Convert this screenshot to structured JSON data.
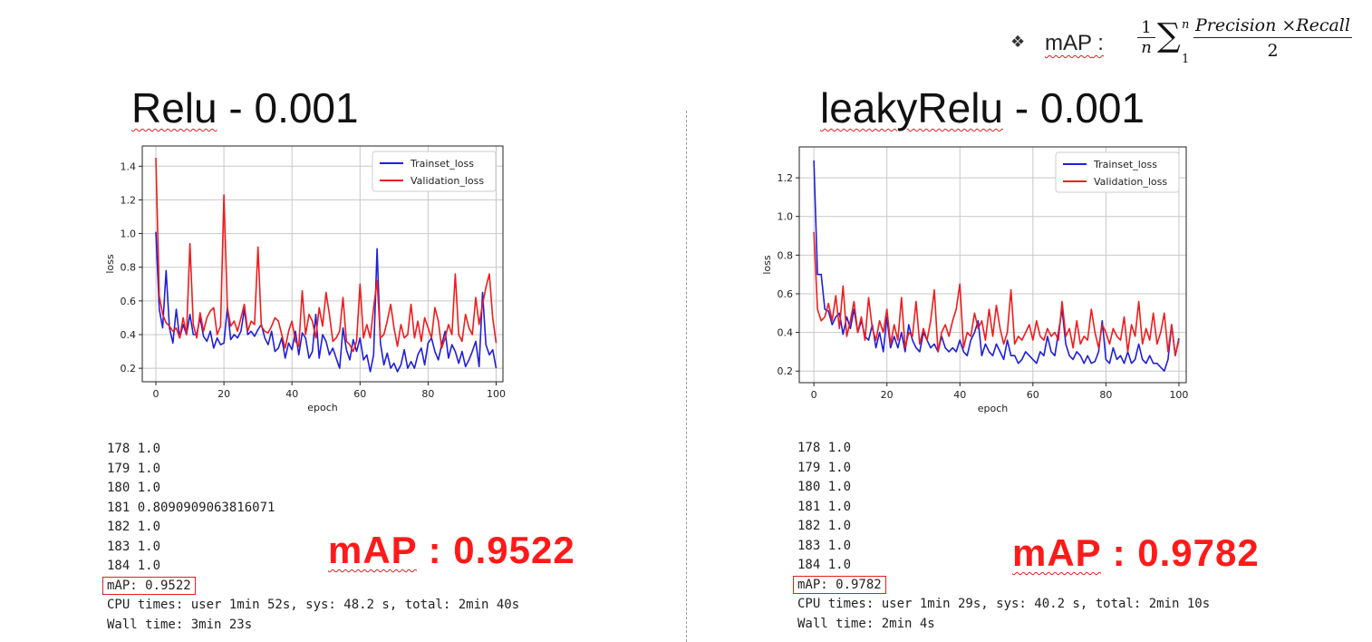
{
  "formula": {
    "bullet": "❖",
    "label": "mAP",
    "colon": ":",
    "frac1_num": "1",
    "frac1_den": "n",
    "sigma": "∑",
    "sup": "n",
    "sub": "1",
    "num": "Precision ×Recall",
    "den": "2"
  },
  "panels": [
    {
      "title_main": "Relu",
      "title_rest": " - 0.001",
      "log_lines": [
        "178 1.0",
        "179 1.0",
        "180 1.0",
        "181 0.8090909063816071",
        "182 1.0",
        "183 1.0",
        "184 1.0"
      ],
      "map_line": "mAP: 0.9522",
      "cpu_line": "CPU times: user 1min 52s, sys: 48.2 s, total: 2min 40s",
      "wall_line": "Wall time: 3min 23s",
      "big_label": "mAP",
      "big_value": " : 0.9522"
    },
    {
      "title_main": "leakyRelu",
      "title_rest": " - 0.001",
      "log_lines": [
        "178 1.0",
        "179 1.0",
        "180 1.0",
        "181 1.0",
        "182 1.0",
        "183 1.0",
        "184 1.0"
      ],
      "map_line": "mAP: 0.9782",
      "cpu_line": "CPU times: user 1min 29s, sys: 40.2 s, total: 2min 10s",
      "wall_line": "Wall time: 2min 4s",
      "big_label": "mAP",
      "big_value": " : 0.9782"
    }
  ],
  "colors": {
    "train": "#1f1fdc",
    "val": "#f01c1c",
    "highlight": "#ff1a1a",
    "grid": "#c8c8c8"
  },
  "chart_data": [
    {
      "type": "line",
      "xlabel": "epoch",
      "ylabel": "loss",
      "xlim": [
        -4,
        102
      ],
      "ylim": [
        0.12,
        1.52
      ],
      "xticks": [
        0,
        20,
        40,
        60,
        80,
        100
      ],
      "yticks": [
        0.2,
        0.4,
        0.6,
        0.8,
        1.0,
        1.2,
        1.4
      ],
      "grid": true,
      "legend_position": "top-right",
      "series": [
        {
          "name": "Trainset_loss",
          "x_start": 0,
          "values": [
            1.01,
            0.55,
            0.44,
            0.78,
            0.44,
            0.35,
            0.55,
            0.38,
            0.46,
            0.4,
            0.52,
            0.4,
            0.4,
            0.5,
            0.39,
            0.36,
            0.42,
            0.32,
            0.38,
            0.34,
            0.35,
            0.56,
            0.37,
            0.4,
            0.38,
            0.42,
            0.55,
            0.4,
            0.42,
            0.39,
            0.43,
            0.46,
            0.38,
            0.34,
            0.42,
            0.3,
            0.32,
            0.38,
            0.26,
            0.35,
            0.31,
            0.42,
            0.28,
            0.41,
            0.38,
            0.26,
            0.3,
            0.52,
            0.26,
            0.4,
            0.36,
            0.28,
            0.32,
            0.26,
            0.2,
            0.44,
            0.31,
            0.25,
            0.37,
            0.3,
            0.38,
            0.25,
            0.28,
            0.18,
            0.28,
            0.91,
            0.35,
            0.22,
            0.29,
            0.2,
            0.23,
            0.18,
            0.22,
            0.31,
            0.2,
            0.24,
            0.2,
            0.28,
            0.32,
            0.22,
            0.35,
            0.38,
            0.3,
            0.25,
            0.34,
            0.42,
            0.26,
            0.34,
            0.3,
            0.23,
            0.3,
            0.21,
            0.25,
            0.3,
            0.36,
            0.21,
            0.65,
            0.34,
            0.28,
            0.31,
            0.2
          ]
        },
        {
          "name": "Validation_loss",
          "x_start": 0,
          "values": [
            1.45,
            0.63,
            0.52,
            0.47,
            0.45,
            0.42,
            0.44,
            0.38,
            0.5,
            0.4,
            0.94,
            0.46,
            0.38,
            0.53,
            0.42,
            0.5,
            0.54,
            0.56,
            0.4,
            0.45,
            1.23,
            0.56,
            0.45,
            0.48,
            0.42,
            0.5,
            0.58,
            0.42,
            0.48,
            0.46,
            0.92,
            0.45,
            0.42,
            0.41,
            0.45,
            0.5,
            0.48,
            0.4,
            0.32,
            0.42,
            0.48,
            0.36,
            0.33,
            0.66,
            0.4,
            0.52,
            0.48,
            0.38,
            0.56,
            0.45,
            0.65,
            0.52,
            0.36,
            0.38,
            0.42,
            0.62,
            0.36,
            0.34,
            0.3,
            0.36,
            0.7,
            0.38,
            0.46,
            0.38,
            0.56,
            0.72,
            0.38,
            0.4,
            0.48,
            0.58,
            0.44,
            0.33,
            0.46,
            0.38,
            0.4,
            0.58,
            0.38,
            0.48,
            0.36,
            0.5,
            0.44,
            0.38,
            0.56,
            0.48,
            0.32,
            0.38,
            0.46,
            0.4,
            0.76,
            0.4,
            0.36,
            0.52,
            0.44,
            0.4,
            0.62,
            0.46,
            0.58,
            0.68,
            0.76,
            0.5,
            0.35
          ]
        }
      ]
    },
    {
      "type": "line",
      "xlabel": "epoch",
      "ylabel": "loss",
      "xlim": [
        -4,
        102
      ],
      "ylim": [
        0.14,
        1.36
      ],
      "xticks": [
        0,
        20,
        40,
        60,
        80,
        100
      ],
      "yticks": [
        0.2,
        0.4,
        0.6,
        0.8,
        1.0,
        1.2
      ],
      "grid": true,
      "legend_position": "top-right",
      "series": [
        {
          "name": "Trainset_loss",
          "x_start": 0,
          "values": [
            1.29,
            0.7,
            0.7,
            0.52,
            0.51,
            0.44,
            0.48,
            0.5,
            0.39,
            0.48,
            0.42,
            0.52,
            0.4,
            0.46,
            0.38,
            0.36,
            0.44,
            0.32,
            0.4,
            0.3,
            0.48,
            0.32,
            0.38,
            0.32,
            0.4,
            0.3,
            0.44,
            0.36,
            0.32,
            0.3,
            0.4,
            0.36,
            0.32,
            0.34,
            0.3,
            0.38,
            0.32,
            0.3,
            0.32,
            0.3,
            0.36,
            0.3,
            0.28,
            0.36,
            0.4,
            0.46,
            0.28,
            0.34,
            0.3,
            0.28,
            0.34,
            0.3,
            0.26,
            0.36,
            0.28,
            0.28,
            0.24,
            0.26,
            0.3,
            0.28,
            0.26,
            0.24,
            0.3,
            0.28,
            0.38,
            0.3,
            0.28,
            0.4,
            0.52,
            0.34,
            0.28,
            0.26,
            0.3,
            0.28,
            0.24,
            0.28,
            0.24,
            0.25,
            0.3,
            0.46,
            0.26,
            0.24,
            0.32,
            0.26,
            0.28,
            0.24,
            0.3,
            0.24,
            0.26,
            0.34,
            0.26,
            0.24,
            0.28,
            0.24,
            0.24,
            0.22,
            0.2,
            0.26,
            0.44,
            0.28,
            0.37
          ]
        },
        {
          "name": "Validation_loss",
          "x_start": 0,
          "values": [
            0.92,
            0.52,
            0.46,
            0.48,
            0.55,
            0.46,
            0.59,
            0.42,
            0.64,
            0.38,
            0.46,
            0.56,
            0.4,
            0.48,
            0.36,
            0.58,
            0.42,
            0.36,
            0.46,
            0.4,
            0.52,
            0.34,
            0.44,
            0.36,
            0.58,
            0.32,
            0.4,
            0.38,
            0.56,
            0.34,
            0.42,
            0.36,
            0.46,
            0.62,
            0.3,
            0.4,
            0.44,
            0.38,
            0.46,
            0.52,
            0.65,
            0.32,
            0.4,
            0.38,
            0.5,
            0.42,
            0.46,
            0.36,
            0.52,
            0.38,
            0.54,
            0.42,
            0.34,
            0.4,
            0.62,
            0.34,
            0.38,
            0.36,
            0.4,
            0.44,
            0.36,
            0.46,
            0.38,
            0.36,
            0.42,
            0.38,
            0.4,
            0.36,
            0.56,
            0.38,
            0.42,
            0.32,
            0.46,
            0.34,
            0.38,
            0.36,
            0.52,
            0.4,
            0.32,
            0.44,
            0.4,
            0.34,
            0.42,
            0.38,
            0.36,
            0.48,
            0.3,
            0.44,
            0.38,
            0.56,
            0.34,
            0.42,
            0.36,
            0.5,
            0.34,
            0.4,
            0.5,
            0.3,
            0.44,
            0.28,
            0.36
          ]
        }
      ]
    }
  ]
}
